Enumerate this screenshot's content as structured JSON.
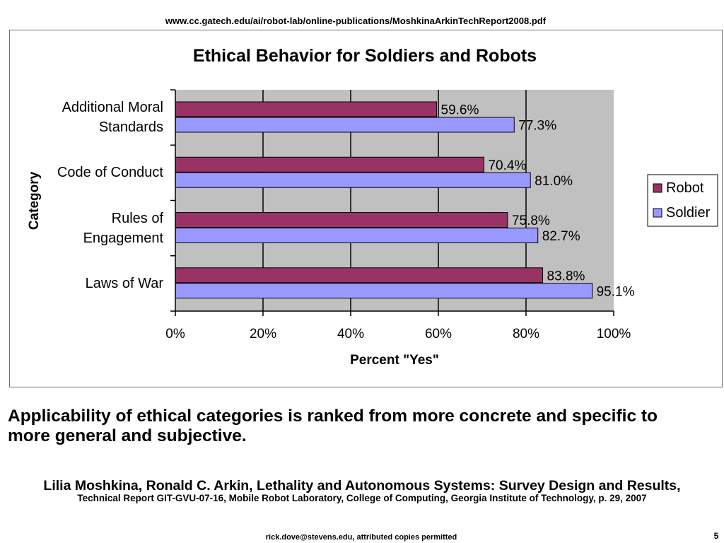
{
  "header": {
    "source_url": "www.cc.gatech.edu/ai/robot-lab/online-publications/MoshkinaArkinTechReport2008.pdf"
  },
  "chart_data": {
    "type": "bar",
    "orientation": "horizontal",
    "title": "Ethical Behavior for Soldiers and Robots",
    "xlabel": "Percent \"Yes\"",
    "ylabel": "Category",
    "categories": [
      "Additional Moral Standards",
      "Code of Conduct",
      "Rules of Engagement",
      "Laws of War"
    ],
    "series": [
      {
        "name": "Robot",
        "color": "#993366",
        "values": [
          59.6,
          70.4,
          75.8,
          83.8
        ],
        "labels": [
          "59.6%",
          "70.4%",
          "75.8%",
          "83.8%"
        ]
      },
      {
        "name": "Soldier",
        "color": "#9999FF",
        "values": [
          77.3,
          81.0,
          82.7,
          95.1
        ],
        "labels": [
          "77.3%",
          "81.0%",
          "82.7%",
          "95.1%"
        ]
      }
    ],
    "xlim": [
      0,
      100
    ],
    "x_ticks": [
      0,
      20,
      40,
      60,
      80,
      100
    ],
    "x_tick_labels": [
      "0%",
      "20%",
      "40%",
      "60%",
      "80%",
      "100%"
    ],
    "grid": "vertical",
    "legend": "right",
    "plot_background": "#C0C0C0"
  },
  "caption": "Applicability of ethical categories is ranked from more concrete and specific to more general and subjective.",
  "citation": {
    "line1": "Lilia Moshkina, Ronald C. Arkin, Lethality and Autonomous Systems: Survey Design and Results,",
    "line2": "Technical Report GIT-GVU-07-16, Mobile Robot Laboratory, College of Computing, Georgia Institute of Technology, p. 29, 2007"
  },
  "footer": {
    "credit": "rick.dove@stevens.edu, attributed copies permitted",
    "page_number": "5"
  }
}
